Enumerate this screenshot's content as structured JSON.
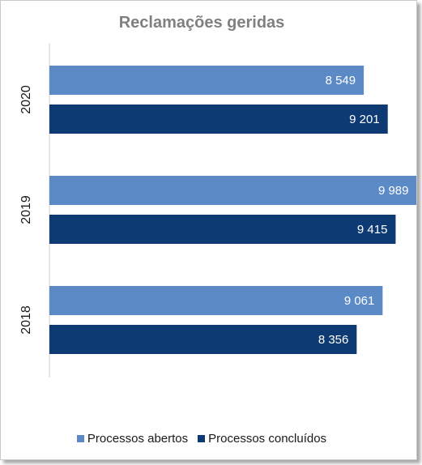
{
  "chart_data": {
    "type": "bar",
    "orientation": "horizontal",
    "title": "Reclamações geridas",
    "categories": [
      "2020",
      "2019",
      "2018"
    ],
    "series": [
      {
        "name": "Processos abertos",
        "values": [
          8549,
          9989,
          9061
        ],
        "labels": [
          "8 549",
          "9 989",
          "9 061"
        ],
        "color": "#5b8ac6"
      },
      {
        "name": "Processos concluídos",
        "values": [
          9201,
          9415,
          8356
        ],
        "labels": [
          "9 201",
          "9 415",
          "8 356"
        ],
        "color": "#0e3a73"
      }
    ],
    "xlim": [
      0,
      10000
    ],
    "grid": false,
    "legend": "bottom"
  }
}
